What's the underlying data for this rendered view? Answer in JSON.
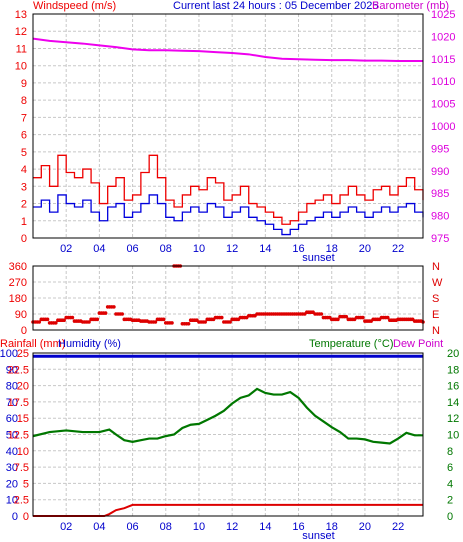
{
  "header": {
    "wind_title": "Windspeed (m/s)",
    "center_title": "Current last 24 hours : 05 December 2025",
    "baro_title": "Barometer (mb)"
  },
  "colors": {
    "frame": "#000000",
    "grid": "#c8c8c8",
    "wind_avg": "#0000dd",
    "wind_gust": "#ee0000",
    "barometer": "#ee00ee",
    "direction": "#dd0000",
    "humidity": "#0000cc",
    "temperature": "#007700",
    "rainfall": "#dd0000",
    "dewpoint": "#cc00cc",
    "title_red": "#ee0000",
    "title_blue": "#0000cc",
    "title_green": "#007700",
    "title_magenta": "#cc00cc",
    "right_axis_magenta": "#dd00dd",
    "right_axis_red": "#dd0000",
    "right_axis_green": "#007700"
  },
  "chart_data": [
    {
      "type": "line",
      "name": "wind-baro-panel",
      "xlabel": "sunset",
      "x_ticks": [
        "02",
        "04",
        "06",
        "08",
        "10",
        "12",
        "14",
        "16",
        "18",
        "20",
        "22"
      ],
      "x_range_hours": [
        0,
        23.5
      ],
      "y_left": {
        "label": "Windspeed (m/s)",
        "ticks": [
          "0",
          "1",
          "2",
          "3",
          "4",
          "5",
          "6",
          "7",
          "8",
          "9",
          "10",
          "11",
          "12",
          "13"
        ],
        "range": [
          0,
          13
        ]
      },
      "y_right": {
        "label": "Barometer (mb)",
        "ticks": [
          "975",
          "980",
          "985",
          "990",
          "995",
          "1000",
          "1005",
          "1010",
          "1015",
          "1020",
          "1025"
        ],
        "range": [
          975,
          1025
        ]
      },
      "series": [
        {
          "name": "Windspeed",
          "x": [
            0,
            0.5,
            1,
            1.5,
            2,
            2.5,
            3,
            3.5,
            4,
            4.5,
            5,
            5.5,
            6,
            6.5,
            7,
            7.5,
            8,
            8.5,
            9,
            9.5,
            10,
            10.5,
            11,
            11.5,
            12,
            12.5,
            13,
            13.5,
            14,
            14.5,
            15,
            15.5,
            16,
            16.5,
            17,
            17.5,
            18,
            18.5,
            19,
            19.5,
            20,
            20.5,
            21,
            21.5,
            22,
            22.5,
            23,
            23.5
          ],
          "values": [
            1.8,
            2.2,
            1.5,
            2.5,
            2.0,
            1.8,
            2.2,
            1.5,
            1.0,
            1.8,
            2.0,
            1.2,
            1.5,
            2.0,
            2.5,
            2.0,
            1.2,
            1.0,
            1.5,
            1.8,
            1.5,
            2.0,
            1.8,
            1.2,
            1.5,
            1.8,
            1.2,
            1.0,
            0.8,
            0.5,
            0.2,
            0.5,
            0.8,
            1.0,
            1.2,
            1.5,
            1.2,
            1.5,
            1.8,
            1.5,
            1.2,
            1.5,
            1.8,
            1.5,
            1.8,
            2.0,
            1.5,
            1.2
          ]
        },
        {
          "name": "Gust",
          "x": [
            0,
            0.5,
            1,
            1.5,
            2,
            2.5,
            3,
            3.5,
            4,
            4.5,
            5,
            5.5,
            6,
            6.5,
            7,
            7.5,
            8,
            8.5,
            9,
            9.5,
            10,
            10.5,
            11,
            11.5,
            12,
            12.5,
            13,
            13.5,
            14,
            14.5,
            15,
            15.5,
            16,
            16.5,
            17,
            17.5,
            18,
            18.5,
            19,
            19.5,
            20,
            20.5,
            21,
            21.5,
            22,
            22.5,
            23,
            23.5
          ],
          "values": [
            3.5,
            4.2,
            3.0,
            4.8,
            3.8,
            3.5,
            4.0,
            3.2,
            2.0,
            3.0,
            3.5,
            2.2,
            2.5,
            3.8,
            4.8,
            3.5,
            2.2,
            1.8,
            2.5,
            3.0,
            2.8,
            3.5,
            3.2,
            2.2,
            2.5,
            3.0,
            2.0,
            1.8,
            1.5,
            1.2,
            0.8,
            1.0,
            1.5,
            2.0,
            2.2,
            2.5,
            2.0,
            2.5,
            3.0,
            2.5,
            2.2,
            2.8,
            3.0,
            2.5,
            3.0,
            3.5,
            2.8,
            2.2
          ]
        },
        {
          "name": "Barometer",
          "x": [
            0,
            1,
            2,
            3,
            4,
            5,
            6,
            7,
            8,
            9,
            10,
            11,
            12,
            13,
            14,
            15,
            16,
            17,
            18,
            19,
            20,
            21,
            22,
            23,
            23.5
          ],
          "values": [
            1019.5,
            1019.0,
            1018.7,
            1018.4,
            1018.0,
            1017.6,
            1017.1,
            1016.9,
            1016.9,
            1016.8,
            1016.7,
            1016.5,
            1016.3,
            1016.0,
            1015.4,
            1015.0,
            1014.9,
            1014.8,
            1014.7,
            1014.7,
            1014.6,
            1014.6,
            1014.5,
            1014.5,
            1014.5
          ]
        }
      ]
    },
    {
      "type": "scatter",
      "name": "wind-direction-panel",
      "y_left": {
        "ticks": [
          "0",
          "90",
          "180",
          "270",
          "360"
        ],
        "range": [
          0,
          360
        ]
      },
      "y_right": {
        "ticks": [
          "N",
          "E",
          "S",
          "W",
          "N"
        ]
      },
      "series": [
        {
          "name": "Wind Direction",
          "x": [
            0,
            0.5,
            1,
            1.5,
            2,
            2.5,
            3,
            3.5,
            4,
            4.5,
            5,
            5.5,
            6,
            6.5,
            7,
            7.5,
            8,
            8.5,
            9,
            9.5,
            10,
            10.5,
            11,
            11.5,
            12,
            12.5,
            13,
            13.5,
            14,
            14.5,
            15,
            15.5,
            16,
            16.5,
            17,
            17.5,
            18,
            18.5,
            19,
            19.5,
            20,
            20.5,
            21,
            21.5,
            22,
            22.5,
            23,
            23.5
          ],
          "values": [
            45,
            60,
            40,
            55,
            70,
            50,
            45,
            60,
            95,
            130,
            90,
            60,
            55,
            50,
            45,
            60,
            40,
            360,
            35,
            55,
            45,
            60,
            70,
            45,
            60,
            70,
            80,
            90,
            90,
            90,
            90,
            90,
            90,
            100,
            90,
            70,
            60,
            75,
            60,
            70,
            50,
            60,
            70,
            55,
            60,
            60,
            50,
            45
          ]
        }
      ]
    },
    {
      "type": "line",
      "name": "temp-humidity-rain-panel",
      "xlabel": "sunset",
      "x_ticks": [
        "02",
        "04",
        "06",
        "08",
        "10",
        "12",
        "14",
        "16",
        "18",
        "20",
        "22"
      ],
      "titles": {
        "rainfall": "Rainfall (mm)",
        "humidity": "Humidity (%)",
        "temperature": "Temperature (°C)",
        "dewpoint": "Dew Point"
      },
      "y_left_humidity": {
        "ticks": [
          "0",
          "10",
          "20",
          "30",
          "40",
          "50",
          "60",
          "70",
          "80",
          "90",
          "100"
        ],
        "range": [
          0,
          100
        ]
      },
      "y_left_rain": {
        "ticks": [
          "0",
          "2.5",
          "5",
          "7.5",
          "10",
          "12.5",
          "15",
          "17.5",
          "20",
          "22.5",
          "25"
        ],
        "range": [
          0,
          25
        ]
      },
      "y_right": {
        "ticks": [
          "0",
          "2",
          "4",
          "6",
          "8",
          "10",
          "12",
          "14",
          "16",
          "18",
          "20"
        ],
        "range": [
          0,
          20
        ]
      },
      "series": [
        {
          "name": "Humidity",
          "x": [
            0,
            23.5
          ],
          "values": [
            98,
            98
          ]
        },
        {
          "name": "Temperature",
          "x": [
            0,
            1,
            2,
            3,
            4,
            4.6,
            5,
            5.5,
            6,
            6.5,
            7,
            7.5,
            8,
            8.5,
            9,
            9.5,
            10,
            10.5,
            11,
            11.5,
            12,
            12.5,
            13,
            13.5,
            14,
            14.5,
            15,
            15.5,
            16,
            16.5,
            17,
            17.5,
            18,
            18.5,
            19,
            19.5,
            20,
            20.5,
            21,
            21.5,
            22,
            22.5,
            23,
            23.5
          ],
          "values": [
            9.8,
            10.3,
            10.5,
            10.3,
            10.3,
            10.6,
            10.0,
            9.3,
            9.1,
            9.3,
            9.5,
            9.5,
            9.8,
            10.0,
            10.8,
            11.2,
            11.3,
            11.8,
            12.3,
            12.9,
            13.8,
            14.5,
            14.8,
            15.6,
            15.1,
            14.9,
            14.9,
            15.2,
            14.5,
            13.3,
            12.3,
            11.6,
            10.9,
            10.3,
            9.5,
            9.5,
            9.4,
            9.1,
            9.0,
            8.9,
            9.5,
            10.2,
            9.9,
            9.9
          ]
        },
        {
          "name": "Rainfall",
          "x": [
            0,
            4.3,
            4.6,
            5,
            5.5,
            6,
            8,
            10,
            12,
            14,
            16,
            18,
            20,
            22,
            23.5
          ],
          "values": [
            0,
            0,
            0.3,
            0.9,
            1.2,
            1.7,
            1.7,
            1.7,
            1.7,
            1.7,
            1.7,
            1.7,
            1.7,
            1.7,
            1.7
          ]
        }
      ]
    }
  ]
}
